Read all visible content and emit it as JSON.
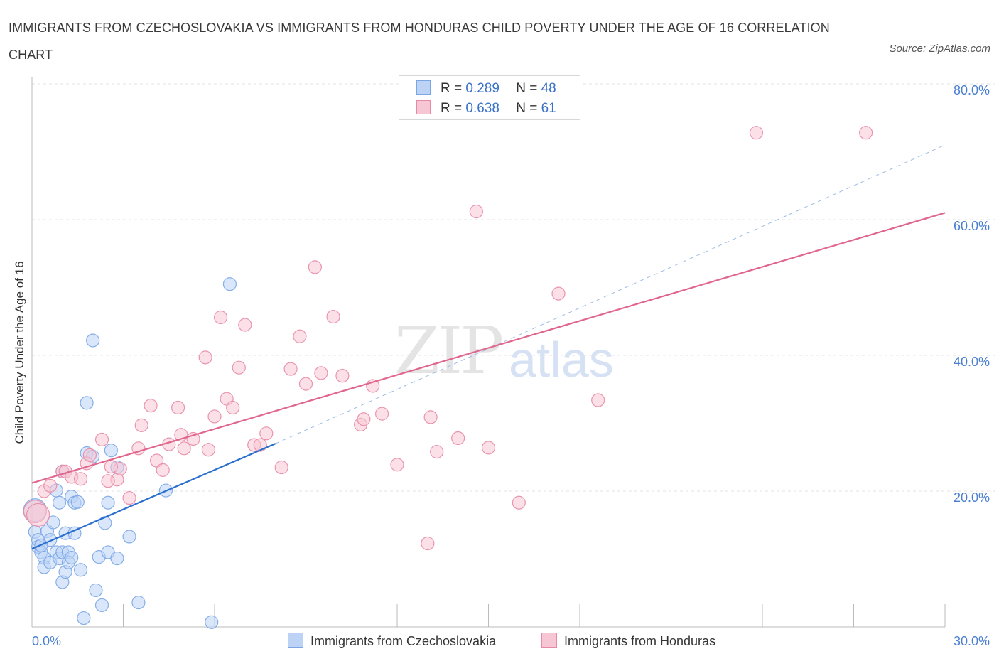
{
  "title": "IMMIGRANTS FROM CZECHOSLOVAKIA VS IMMIGRANTS FROM HONDURAS CHILD POVERTY UNDER THE AGE OF 16 CORRELATION CHART",
  "source": "Source: ZipAtlas.com",
  "watermark": {
    "zip": "ZIP",
    "atlas": "atlas"
  },
  "colors": {
    "blue": "#7aa6e6",
    "blue_fill": "#bcd3f5",
    "blue_line": "#2a6fce",
    "pink": "#e889a6",
    "pink_fill": "#f7c6d4",
    "pink_line": "#e0668e",
    "tick": "#4a7fd0"
  },
  "legend_top": [
    {
      "r_label": "R =",
      "r_value": "0.289",
      "n_label": "N =",
      "n_value": "48"
    },
    {
      "r_label": "R =",
      "r_value": "0.638",
      "n_label": "N =",
      "n_value": "61"
    }
  ],
  "chart_data": {
    "type": "scatter",
    "xlabel": "",
    "ylabel": "Child Poverty Under the Age of 16",
    "xlim": [
      0,
      30
    ],
    "ylim": [
      0,
      80
    ],
    "x_tick_labels": [
      "0.0%",
      "30.0%"
    ],
    "y_tick_labels": [
      "20.0%",
      "40.0%",
      "60.0%",
      "80.0%"
    ],
    "y_ticks": [
      20,
      40,
      60,
      80
    ],
    "grid": true,
    "legend_placement": "bottom",
    "series": [
      {
        "name": "Immigrants from Czechoslovakia",
        "color": "blue",
        "trend": {
          "x0": 0,
          "y0": 11.5,
          "x1": 8,
          "y1": 27,
          "dashed_to_x": 30,
          "dashed_to_y": 71
        },
        "points": [
          [
            0.1,
            17.2
          ],
          [
            0.1,
            14
          ],
          [
            0.2,
            12.8
          ],
          [
            0.2,
            11.8
          ],
          [
            0.3,
            11
          ],
          [
            0.4,
            10.2
          ],
          [
            0.4,
            8.8
          ],
          [
            0.5,
            14.1
          ],
          [
            0.6,
            9.5
          ],
          [
            0.6,
            12.8
          ],
          [
            0.7,
            15.4
          ],
          [
            0.8,
            11
          ],
          [
            0.8,
            20.1
          ],
          [
            0.9,
            10.1
          ],
          [
            0.9,
            18.3
          ],
          [
            1.0,
            11
          ],
          [
            1.0,
            6.6
          ],
          [
            1.1,
            13.8
          ],
          [
            1.1,
            8.1
          ],
          [
            1.2,
            11
          ],
          [
            1.2,
            9.5
          ],
          [
            1.3,
            10.2
          ],
          [
            1.3,
            19.2
          ],
          [
            1.4,
            13.8
          ],
          [
            1.4,
            18.3
          ],
          [
            1.5,
            18.4
          ],
          [
            1.6,
            8.4
          ],
          [
            1.7,
            1.3
          ],
          [
            1.8,
            33
          ],
          [
            1.8,
            25.6
          ],
          [
            2.0,
            25.1
          ],
          [
            2.0,
            42.2
          ],
          [
            2.1,
            5.4
          ],
          [
            2.2,
            10.3
          ],
          [
            2.3,
            3.2
          ],
          [
            2.4,
            15.3
          ],
          [
            2.5,
            18.3
          ],
          [
            2.5,
            11
          ],
          [
            2.6,
            26
          ],
          [
            2.8,
            10.1
          ],
          [
            2.8,
            23.5
          ],
          [
            3.2,
            13.3
          ],
          [
            3.5,
            3.6
          ],
          [
            4.4,
            20.1
          ],
          [
            5.9,
            0.7
          ],
          [
            6.5,
            50.5
          ],
          [
            0.3,
            12
          ],
          [
            1.0,
            22.9
          ]
        ]
      },
      {
        "name": "Immigrants from Honduras",
        "color": "pink",
        "trend": {
          "x0": 0,
          "y0": 21.2,
          "x1": 30,
          "y1": 61
        },
        "points": [
          [
            0.1,
            17
          ],
          [
            0.4,
            20
          ],
          [
            0.6,
            20.8
          ],
          [
            1.0,
            22.9
          ],
          [
            1.1,
            22.9
          ],
          [
            1.3,
            22.1
          ],
          [
            1.6,
            21.8
          ],
          [
            1.8,
            24.1
          ],
          [
            1.9,
            25.3
          ],
          [
            2.3,
            27.6
          ],
          [
            2.8,
            21.7
          ],
          [
            2.9,
            23.3
          ],
          [
            2.6,
            23.6
          ],
          [
            3.2,
            19
          ],
          [
            3.5,
            26.3
          ],
          [
            3.6,
            29.7
          ],
          [
            3.9,
            32.6
          ],
          [
            4.1,
            24.5
          ],
          [
            4.3,
            23.1
          ],
          [
            4.5,
            26.9
          ],
          [
            4.8,
            32.3
          ],
          [
            4.9,
            28.3
          ],
          [
            5.0,
            26.3
          ],
          [
            5.3,
            27.7
          ],
          [
            5.7,
            39.7
          ],
          [
            5.8,
            26.1
          ],
          [
            6.0,
            31
          ],
          [
            6.2,
            45.6
          ],
          [
            6.4,
            33.6
          ],
          [
            6.6,
            32.3
          ],
          [
            6.8,
            38.2
          ],
          [
            7.0,
            44.5
          ],
          [
            7.3,
            26.8
          ],
          [
            7.5,
            26.8
          ],
          [
            7.7,
            28.5
          ],
          [
            8.2,
            23.5
          ],
          [
            8.5,
            38
          ],
          [
            8.8,
            42.8
          ],
          [
            9.0,
            35.8
          ],
          [
            9.3,
            53
          ],
          [
            9.5,
            37.4
          ],
          [
            9.9,
            45.7
          ],
          [
            10.2,
            37
          ],
          [
            10.8,
            29.8
          ],
          [
            10.9,
            30.6
          ],
          [
            11.2,
            35.5
          ],
          [
            11.5,
            31.4
          ],
          [
            12.0,
            23.9
          ],
          [
            13.0,
            12.3
          ],
          [
            13.1,
            30.9
          ],
          [
            13.3,
            25.8
          ],
          [
            14.0,
            27.8
          ],
          [
            14.6,
            61.2
          ],
          [
            15.0,
            26.4
          ],
          [
            16.0,
            18.3
          ],
          [
            17.3,
            49.1
          ],
          [
            18.6,
            33.4
          ],
          [
            23.8,
            72.8
          ],
          [
            27.4,
            72.8
          ],
          [
            0.2,
            16.5
          ],
          [
            2.5,
            21.5
          ]
        ]
      }
    ]
  },
  "legend_bottom": [
    {
      "label": "Immigrants from Czechoslovakia",
      "color": "blue"
    },
    {
      "label": "Immigrants from Honduras",
      "color": "pink"
    }
  ]
}
